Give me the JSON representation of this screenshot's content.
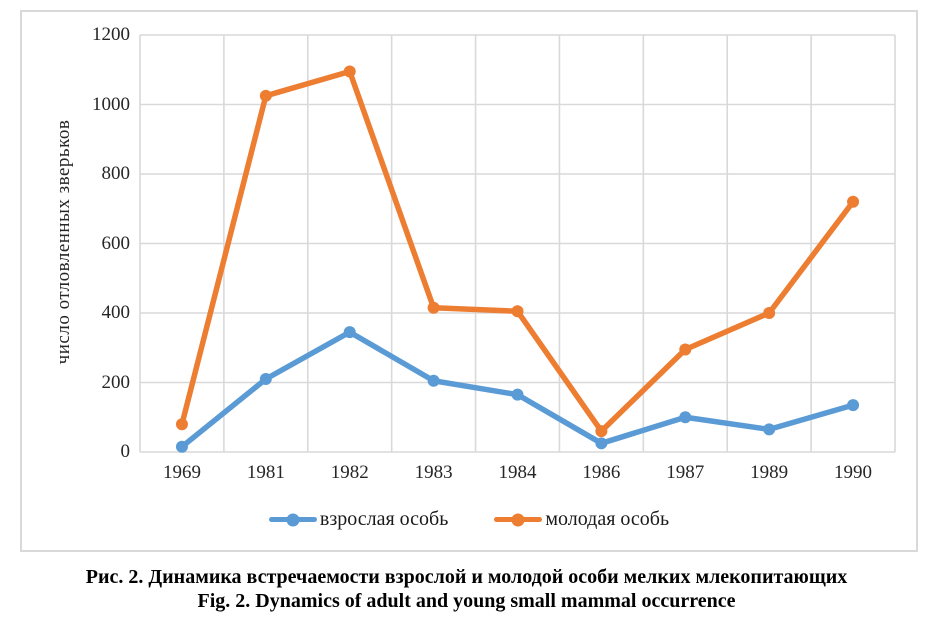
{
  "chart_data": {
    "type": "line",
    "categories": [
      "1969",
      "1981",
      "1982",
      "1983",
      "1984",
      "1986",
      "1987",
      "1989",
      "1990"
    ],
    "series": [
      {
        "name": "взрослая особь",
        "color": "#5B9BD5",
        "values": [
          15,
          210,
          345,
          205,
          165,
          25,
          100,
          65,
          135
        ]
      },
      {
        "name": "молодая особь",
        "color": "#ED7D31",
        "values": [
          80,
          1025,
          1095,
          415,
          405,
          60,
          295,
          400,
          720
        ]
      }
    ],
    "title": "",
    "xlabel": "",
    "ylabel": "число отловленных зверьков",
    "ylim": [
      0,
      1200
    ],
    "y_ticks": [
      0,
      200,
      400,
      600,
      800,
      1000,
      1200
    ],
    "grid": true,
    "gridline_color": "#d9d9d9",
    "legend_position": "bottom",
    "marker": "circle"
  },
  "caption": {
    "ru": "Рис. 2. Динамика встречаемости взрослой и молодой особи мелких млекопитающих",
    "en": "Fig. 2. Dynamics of adult and young small mammal occurrence"
  }
}
